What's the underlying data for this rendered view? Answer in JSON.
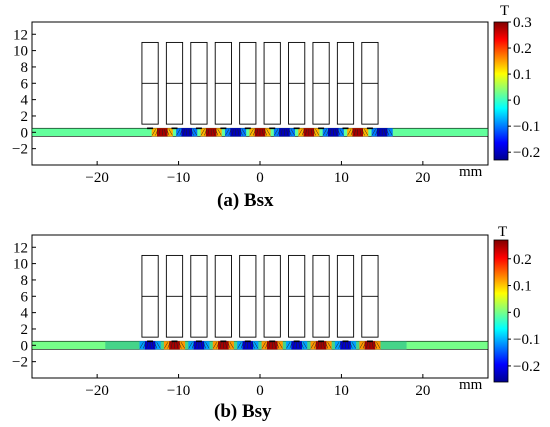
{
  "chart_data": [
    {
      "type": "heatmap",
      "title": "",
      "caption": "(a) Bsx",
      "xlabel": "mm",
      "ylabel": "",
      "xlim": [
        -28,
        28
      ],
      "ylim": [
        -4,
        13.5
      ],
      "xticks": [
        -20,
        -10,
        0,
        10,
        20
      ],
      "xtick_labels": [
        "−20",
        "−10",
        "0",
        "10",
        "20"
      ],
      "yticks": [
        -2,
        0,
        2,
        4,
        6,
        8,
        10,
        12
      ],
      "ytick_labels": [
        "−2",
        "0",
        "2",
        "4",
        "6",
        "8",
        "10",
        "12"
      ],
      "colorbar": {
        "unit": "T",
        "min": -0.23,
        "max": 0.3,
        "ticks": [
          0.3,
          0.2,
          0.1,
          0,
          -0.1,
          -0.2
        ],
        "tick_labels": [
          "0.3",
          "0.2",
          "0.1",
          "0",
          "−0.1",
          "−0.2"
        ]
      },
      "magnets": {
        "count": 10,
        "centers_x": [
          -13.5,
          -10.5,
          -7.5,
          -4.5,
          -1.5,
          1.5,
          4.5,
          7.5,
          10.5,
          13.5
        ],
        "width": 2.0,
        "y_bottom": 1,
        "y_top": 11,
        "y_split": 6
      },
      "hot_spots": [
        {
          "x": -12,
          "value": 0.28
        },
        {
          "x": -9,
          "value": -0.2
        },
        {
          "x": -6,
          "value": 0.28
        },
        {
          "x": -3,
          "value": -0.2
        },
        {
          "x": 0,
          "value": 0.28
        },
        {
          "x": 3,
          "value": -0.2
        },
        {
          "x": 6,
          "value": 0.28
        },
        {
          "x": 9,
          "value": -0.2
        },
        {
          "x": 12,
          "value": 0.28
        },
        {
          "x": 15,
          "value": -0.2
        }
      ]
    },
    {
      "type": "heatmap",
      "title": "",
      "caption": "(b) Bsy",
      "xlabel": "mm",
      "ylabel": "",
      "xlim": [
        -28,
        28
      ],
      "ylim": [
        -4,
        13.5
      ],
      "xticks": [
        -20,
        -10,
        0,
        10,
        20
      ],
      "xtick_labels": [
        "−20",
        "−10",
        "0",
        "10",
        "20"
      ],
      "yticks": [
        -2,
        0,
        2,
        4,
        6,
        8,
        10,
        12
      ],
      "ytick_labels": [
        "−2",
        "0",
        "2",
        "4",
        "6",
        "8",
        "10",
        "12"
      ],
      "colorbar": {
        "unit": "T",
        "min": -0.26,
        "max": 0.27,
        "ticks": [
          0.2,
          0.1,
          0,
          -0.1,
          -0.2
        ],
        "tick_labels": [
          "0.2",
          "0.1",
          "0",
          "−0.1",
          "−0.2"
        ]
      },
      "magnets": {
        "count": 10,
        "centers_x": [
          -13.5,
          -10.5,
          -7.5,
          -4.5,
          -1.5,
          1.5,
          4.5,
          7.5,
          10.5,
          13.5
        ],
        "width": 2.0,
        "y_bottom": 1,
        "y_top": 11,
        "y_split": 6
      },
      "hot_spots": [
        {
          "x": -13.5,
          "value": -0.22
        },
        {
          "x": -10.5,
          "value": 0.25
        },
        {
          "x": -7.5,
          "value": -0.22
        },
        {
          "x": -4.5,
          "value": 0.25
        },
        {
          "x": -1.5,
          "value": -0.22
        },
        {
          "x": 1.5,
          "value": 0.25
        },
        {
          "x": 4.5,
          "value": -0.22
        },
        {
          "x": 7.5,
          "value": 0.25
        },
        {
          "x": 10.5,
          "value": -0.22
        },
        {
          "x": 13.5,
          "value": 0.25
        }
      ]
    }
  ]
}
